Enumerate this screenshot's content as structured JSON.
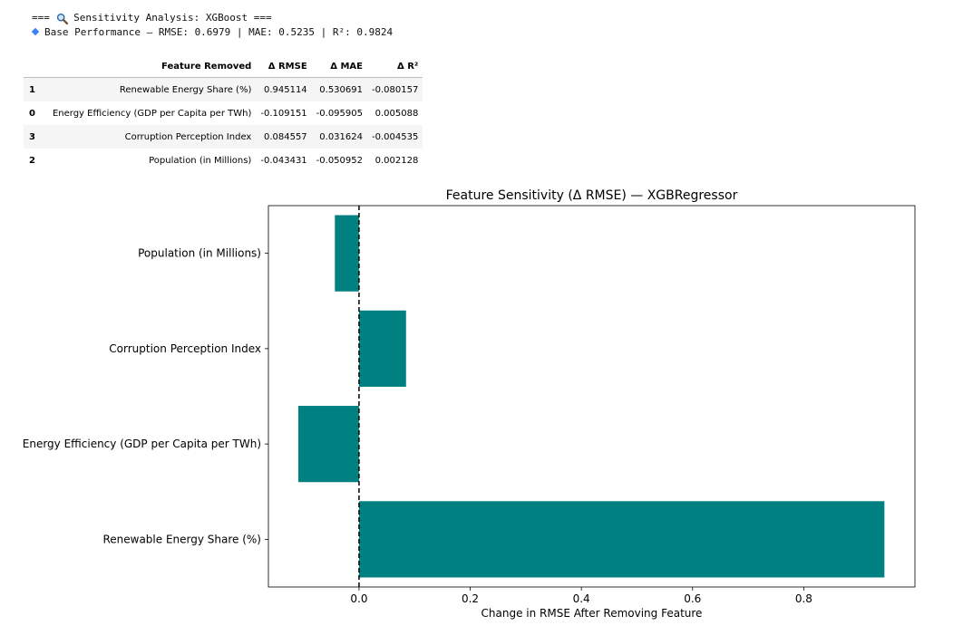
{
  "console": {
    "line1_pre": "=== ",
    "line1_text": " Sensitivity Analysis: XGBoost ===",
    "line1_icon": "magnifier-icon",
    "line2_icon": "blue-diamond-icon",
    "line2_text": "Base Performance — RMSE: 0.6979 | MAE: 0.5235 | R²: 0.9824"
  },
  "table": {
    "columns": [
      "Feature Removed",
      "Δ RMSE",
      "Δ MAE",
      "Δ R²"
    ],
    "rows": [
      {
        "index": "1",
        "feature": "Renewable Energy Share (%)",
        "d_rmse": "0.945114",
        "d_mae": "0.530691",
        "d_r2": "-0.080157"
      },
      {
        "index": "0",
        "feature": "Energy Efficiency (GDP per Capita per TWh)",
        "d_rmse": "-0.109151",
        "d_mae": "-0.095905",
        "d_r2": "0.005088"
      },
      {
        "index": "3",
        "feature": "Corruption Perception Index",
        "d_rmse": "0.084557",
        "d_mae": "0.031624",
        "d_r2": "-0.004535"
      },
      {
        "index": "2",
        "feature": "Population (in Millions)",
        "d_rmse": "-0.043431",
        "d_mae": "-0.050952",
        "d_r2": "0.002128"
      }
    ]
  },
  "chart_data": {
    "type": "bar",
    "orientation": "horizontal",
    "title": "Feature Sensitivity (Δ RMSE) — XGBRegressor",
    "xlabel": "Change in RMSE After Removing Feature",
    "ylabel": "",
    "categories": [
      "Renewable Energy Share (%)",
      "Energy Efficiency (GDP per Capita per TWh)",
      "Corruption Perception Index",
      "Population (in Millions)"
    ],
    "values": [
      0.945114,
      -0.109151,
      0.084557,
      -0.043431
    ],
    "xlim": [
      -0.163,
      1.0
    ],
    "xticks": [
      0.0,
      0.2,
      0.4,
      0.6,
      0.8
    ],
    "reference_line": {
      "x": 0,
      "style": "dashed",
      "color": "#000000"
    },
    "grid": false,
    "bar_color": "#008080"
  }
}
